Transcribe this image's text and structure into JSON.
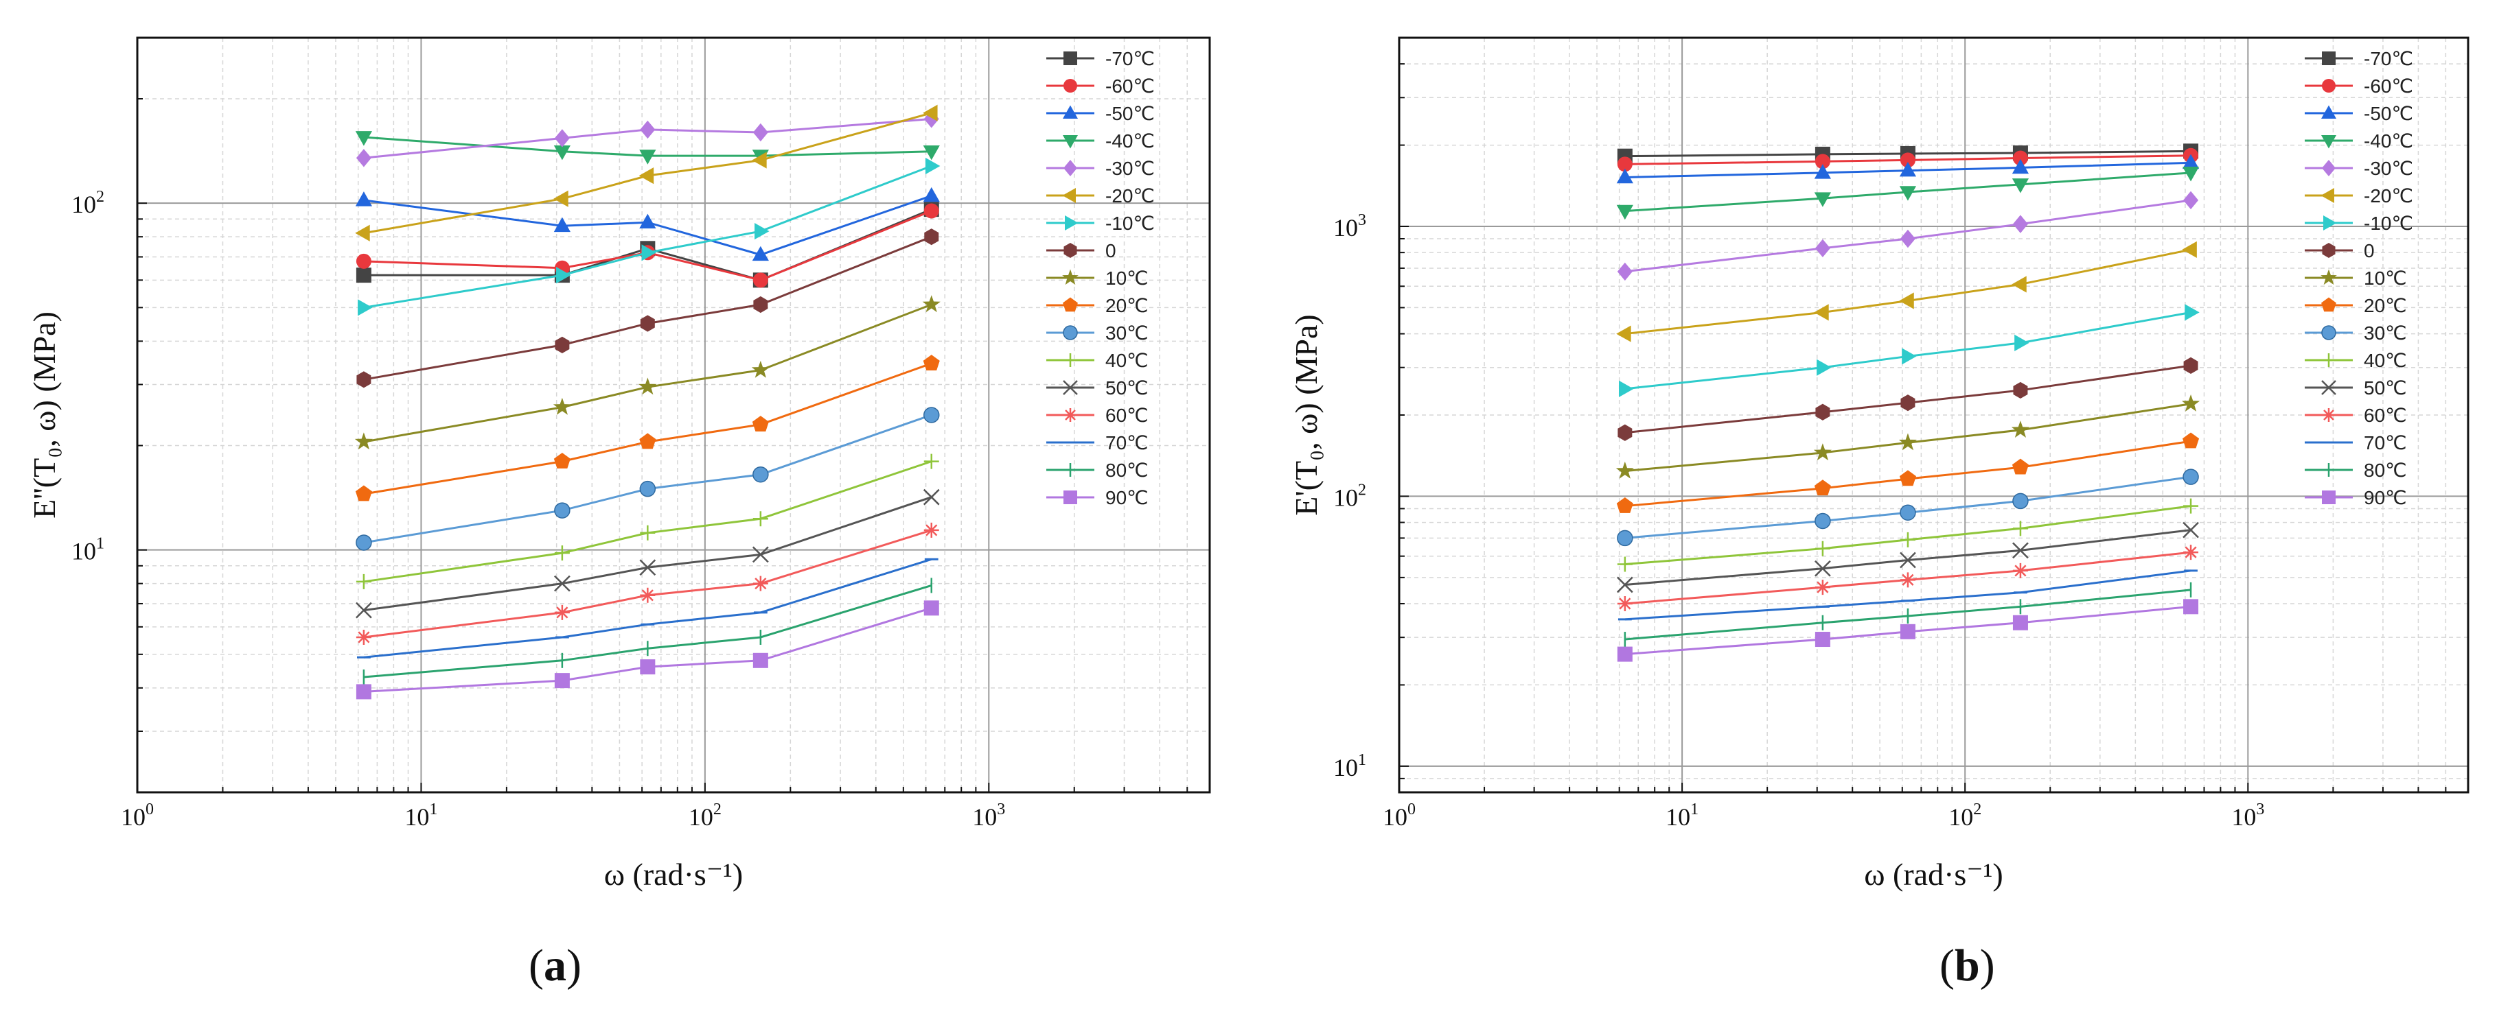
{
  "title_fragment": "",
  "panels": [
    {
      "label_open": "(",
      "label_letter": "a",
      "label_close": ")"
    },
    {
      "label_open": "(",
      "label_letter": "b",
      "label_close": ")"
    }
  ],
  "chart_data": [
    {
      "type": "line",
      "panel": "a",
      "xscale": "log",
      "yscale": "log",
      "xlim": [
        1,
        6000
      ],
      "ylim": [
        2,
        300
      ],
      "xlabel": "ω (rad·s⁻¹)",
      "ylabel": "E''(T₀, ω) (MPa)",
      "x_ticks": [
        {
          "value": 1,
          "base": "10",
          "exp": "0"
        },
        {
          "value": 10,
          "base": "10",
          "exp": "1"
        },
        {
          "value": 100,
          "base": "10",
          "exp": "2"
        },
        {
          "value": 1000,
          "base": "10",
          "exp": "3"
        }
      ],
      "y_ticks": [
        {
          "value": 10,
          "base": "10",
          "exp": "1"
        },
        {
          "value": 100,
          "base": "10",
          "exp": "2"
        }
      ],
      "x": [
        6.28,
        31.4,
        62.8,
        157,
        628
      ],
      "series": [
        {
          "name": "-70℃",
          "color": "#444444",
          "marker": "square",
          "values": [
            62,
            62,
            74,
            60,
            96
          ]
        },
        {
          "name": "-60℃",
          "color": "#e8383d",
          "marker": "circle",
          "values": [
            68,
            65,
            72,
            60,
            95
          ]
        },
        {
          "name": "-50℃",
          "color": "#2266dd",
          "marker": "triangle-up",
          "values": [
            102,
            86,
            88,
            71,
            105
          ]
        },
        {
          "name": "-40℃",
          "color": "#2eaa6a",
          "marker": "triangle-down",
          "values": [
            155,
            141,
            137,
            137,
            141
          ]
        },
        {
          "name": "-30℃",
          "color": "#b57ae0",
          "marker": "diamond",
          "values": [
            135,
            154,
            163,
            160,
            175
          ]
        },
        {
          "name": "-20℃",
          "color": "#c9a21a",
          "marker": "triangle-left",
          "values": [
            82,
            103,
            120,
            133,
            182
          ]
        },
        {
          "name": "-10℃",
          "color": "#2ecbcb",
          "marker": "triangle-right",
          "values": [
            50,
            62,
            72,
            83,
            128
          ]
        },
        {
          "name": "0",
          "color": "#7b3b3b",
          "marker": "hexagon",
          "values": [
            31,
            39,
            45,
            51,
            80
          ]
        },
        {
          "name": "10℃",
          "color": "#8a8a24",
          "marker": "star",
          "values": [
            20.5,
            25.8,
            29.5,
            33,
            51
          ]
        },
        {
          "name": "20℃",
          "color": "#f06a10",
          "marker": "pentagon",
          "values": [
            14.5,
            18,
            20.5,
            23,
            34.5
          ]
        },
        {
          "name": "30℃",
          "color": "#5b9bd5",
          "marker": "sphere",
          "values": [
            10.5,
            13,
            15,
            16.5,
            24.5
          ]
        },
        {
          "name": "40℃",
          "color": "#8fc53a",
          "marker": "plus",
          "values": [
            8.1,
            9.8,
            11.2,
            12.3,
            18
          ]
        },
        {
          "name": "50℃",
          "color": "#555555",
          "marker": "x",
          "values": [
            6.7,
            8,
            8.9,
            9.7,
            14.2
          ]
        },
        {
          "name": "60℃",
          "color": "#f25a5a",
          "marker": "asterisk",
          "values": [
            5.6,
            6.6,
            7.4,
            8,
            11.4
          ]
        },
        {
          "name": "70℃",
          "color": "#2a6fcc",
          "marker": "dash",
          "values": [
            4.9,
            5.6,
            6.1,
            6.6,
            9.4
          ]
        },
        {
          "name": "80℃",
          "color": "#2aa36e",
          "marker": "vbar",
          "values": [
            4.3,
            4.8,
            5.2,
            5.6,
            7.9
          ]
        },
        {
          "name": "90℃",
          "color": "#b177e0",
          "marker": "square",
          "values": [
            3.9,
            4.2,
            4.6,
            4.8,
            6.8
          ]
        }
      ]
    },
    {
      "type": "line",
      "panel": "b",
      "xscale": "log",
      "yscale": "log",
      "xlim": [
        1,
        6000
      ],
      "ylim": [
        8,
        5000
      ],
      "xlabel": "ω (rad·s⁻¹)",
      "ylabel": "E'(T₀, ω) (MPa)",
      "x_ticks": [
        {
          "value": 1,
          "base": "10",
          "exp": "0"
        },
        {
          "value": 10,
          "base": "10",
          "exp": "1"
        },
        {
          "value": 100,
          "base": "10",
          "exp": "2"
        },
        {
          "value": 1000,
          "base": "10",
          "exp": "3"
        }
      ],
      "y_ticks": [
        {
          "value": 10,
          "base": "10",
          "exp": "1"
        },
        {
          "value": 100,
          "base": "10",
          "exp": "2"
        },
        {
          "value": 1000,
          "base": "10",
          "exp": "3"
        }
      ],
      "x": [
        6.28,
        31.4,
        62.8,
        157,
        628
      ],
      "series": [
        {
          "name": "-70℃",
          "color": "#444444",
          "marker": "square",
          "values": [
            1820,
            1850,
            1860,
            1870,
            1900
          ]
        },
        {
          "name": "-60℃",
          "color": "#e8383d",
          "marker": "circle",
          "values": [
            1700,
            1740,
            1760,
            1790,
            1830
          ]
        },
        {
          "name": "-50℃",
          "color": "#2266dd",
          "marker": "triangle-up",
          "values": [
            1520,
            1580,
            1610,
            1650,
            1720
          ]
        },
        {
          "name": "-40℃",
          "color": "#2eaa6a",
          "marker": "triangle-down",
          "values": [
            1140,
            1270,
            1340,
            1430,
            1580
          ]
        },
        {
          "name": "-30℃",
          "color": "#b57ae0",
          "marker": "diamond",
          "values": [
            680,
            830,
            900,
            1020,
            1250
          ]
        },
        {
          "name": "-20℃",
          "color": "#c9a21a",
          "marker": "triangle-left",
          "values": [
            400,
            480,
            530,
            610,
            820
          ]
        },
        {
          "name": "-10℃",
          "color": "#2ecbcb",
          "marker": "triangle-right",
          "values": [
            250,
            300,
            330,
            370,
            480
          ]
        },
        {
          "name": "0",
          "color": "#7b3b3b",
          "marker": "hexagon",
          "values": [
            172,
            205,
            222,
            247,
            305
          ]
        },
        {
          "name": "10℃",
          "color": "#8a8a24",
          "marker": "star",
          "values": [
            124,
            145,
            158,
            176,
            220
          ]
        },
        {
          "name": "20℃",
          "color": "#f06a10",
          "marker": "pentagon",
          "values": [
            92,
            107,
            116,
            128,
            160
          ]
        },
        {
          "name": "30℃",
          "color": "#5b9bd5",
          "marker": "sphere",
          "values": [
            70,
            81,
            87,
            96,
            118
          ]
        },
        {
          "name": "40℃",
          "color": "#8fc53a",
          "marker": "plus",
          "values": [
            56,
            64,
            69,
            76,
            92
          ]
        },
        {
          "name": "50℃",
          "color": "#555555",
          "marker": "x",
          "values": [
            47,
            54,
            58,
            63,
            75
          ]
        },
        {
          "name": "60℃",
          "color": "#f25a5a",
          "marker": "asterisk",
          "values": [
            40,
            46,
            49,
            53,
            62
          ]
        },
        {
          "name": "70℃",
          "color": "#2a6fcc",
          "marker": "dash",
          "values": [
            35,
            39,
            41,
            44,
            53
          ]
        },
        {
          "name": "80℃",
          "color": "#2aa36e",
          "marker": "vbar",
          "values": [
            29.5,
            34,
            36,
            39,
            45
          ]
        },
        {
          "name": "90℃",
          "color": "#b177e0",
          "marker": "square",
          "values": [
            26,
            29.5,
            31.5,
            34,
            39
          ]
        }
      ]
    }
  ]
}
